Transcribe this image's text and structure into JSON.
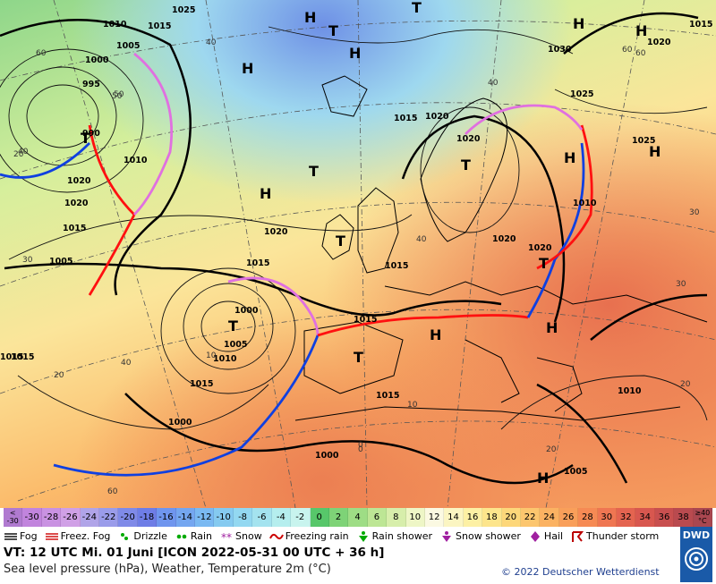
{
  "map": {
    "high_labels": [
      "H",
      "H",
      "H",
      "H",
      "H",
      "H",
      "H",
      "H",
      "H",
      "H",
      "H"
    ],
    "low_labels": [
      "T",
      "T",
      "T",
      "T",
      "T",
      "T",
      "T",
      "T",
      "T"
    ],
    "isobar_labels": [
      "1025",
      "1015",
      "1005",
      "1000",
      "995",
      "990",
      "1010",
      "1020",
      "1020",
      "1015",
      "1005",
      "1010",
      "1015",
      "1020",
      "1020",
      "1030",
      "1025",
      "1020",
      "1015",
      "1025",
      "1020",
      "1015",
      "1000",
      "1005",
      "1010",
      "1015",
      "1000",
      "1000",
      "1005",
      "1010",
      "1015",
      "1015",
      "1015",
      "1015",
      "1010",
      "1020",
      "1020",
      "1015"
    ],
    "temp_labels": [
      "60",
      "50",
      "40",
      "30",
      "20",
      "60",
      "40",
      "40",
      "30",
      "20",
      "10",
      "0",
      "60",
      "30",
      "20",
      "40",
      "40",
      "20",
      "10",
      "0",
      "60",
      "50"
    ],
    "cold_color": "#1040e0",
    "warm_color": "#ff1010",
    "occluded_color": "#e070e0"
  },
  "scale": [
    {
      "label": "<\n-30",
      "color": "#b07ad0"
    },
    {
      "label": "-30",
      "color": "#c184dd"
    },
    {
      "label": "-28",
      "color": "#c992e2"
    },
    {
      "label": "-26",
      "color": "#d0a0e6"
    },
    {
      "label": "-24",
      "color": "#b0a4e8"
    },
    {
      "label": "-22",
      "color": "#9a9cea"
    },
    {
      "label": "-20",
      "color": "#7f8ae8"
    },
    {
      "label": "-18",
      "color": "#6e7de6"
    },
    {
      "label": "-16",
      "color": "#6f95ee"
    },
    {
      "label": "-14",
      "color": "#74a6f0"
    },
    {
      "label": "-12",
      "color": "#7ab9f2"
    },
    {
      "label": "-10",
      "color": "#85caf0"
    },
    {
      "label": "-8",
      "color": "#93d8f1"
    },
    {
      "label": "-6",
      "color": "#a4e3ef"
    },
    {
      "label": "-4",
      "color": "#b5eeee"
    },
    {
      "label": "-2",
      "color": "#c8f4ee"
    },
    {
      "label": "0",
      "color": "#57c76a"
    },
    {
      "label": "2",
      "color": "#7ed377"
    },
    {
      "label": "4",
      "color": "#9edd85"
    },
    {
      "label": "6",
      "color": "#bde695"
    },
    {
      "label": "8",
      "color": "#d7eeab"
    },
    {
      "label": "10",
      "color": "#eef6c6"
    },
    {
      "label": "12",
      "color": "#fbf9e2"
    },
    {
      "label": "14",
      "color": "#fbf5c2"
    },
    {
      "label": "16",
      "color": "#fdf0a4"
    },
    {
      "label": "18",
      "color": "#fde58c"
    },
    {
      "label": "20",
      "color": "#fdd77a"
    },
    {
      "label": "22",
      "color": "#fcc66e"
    },
    {
      "label": "24",
      "color": "#fbb262"
    },
    {
      "label": "26",
      "color": "#f99f5a"
    },
    {
      "label": "28",
      "color": "#f68a54"
    },
    {
      "label": "30",
      "color": "#ef7652"
    },
    {
      "label": "32",
      "color": "#e46450"
    },
    {
      "label": "34",
      "color": "#d8574f"
    },
    {
      "label": "36",
      "color": "#c84f4f"
    },
    {
      "label": "38",
      "color": "#b94a4f"
    },
    {
      "label": "≥40\n°C",
      "color": "#aa4750"
    }
  ],
  "legend": [
    {
      "icon": "fog-icon",
      "label": "Fog"
    },
    {
      "icon": "freezing-fog-icon",
      "label": "Freez. Fog"
    },
    {
      "icon": "drizzle-icon",
      "label": "Drizzle"
    },
    {
      "icon": "rain-icon",
      "label": "Rain"
    },
    {
      "icon": "snow-icon",
      "label": "Snow"
    },
    {
      "icon": "freezing-rain-icon",
      "label": "Freezing rain"
    },
    {
      "icon": "rain-shower-icon",
      "label": "Rain shower"
    },
    {
      "icon": "snow-shower-icon",
      "label": "Snow shower"
    },
    {
      "icon": "hail-icon",
      "label": "Hail"
    },
    {
      "icon": "thunderstorm-icon",
      "label": "Thunder storm"
    }
  ],
  "footer": {
    "valid_time": "VT: 12 UTC Mi.  01 Juni [ICON 2022-05-31  00 UTC + 36 h]",
    "subtitle": "Sea level pressure (hPa), Weather, Temperature 2m (°C)",
    "copyright": "© 2022 Deutscher Wetterdienst",
    "logo": "DWD"
  }
}
